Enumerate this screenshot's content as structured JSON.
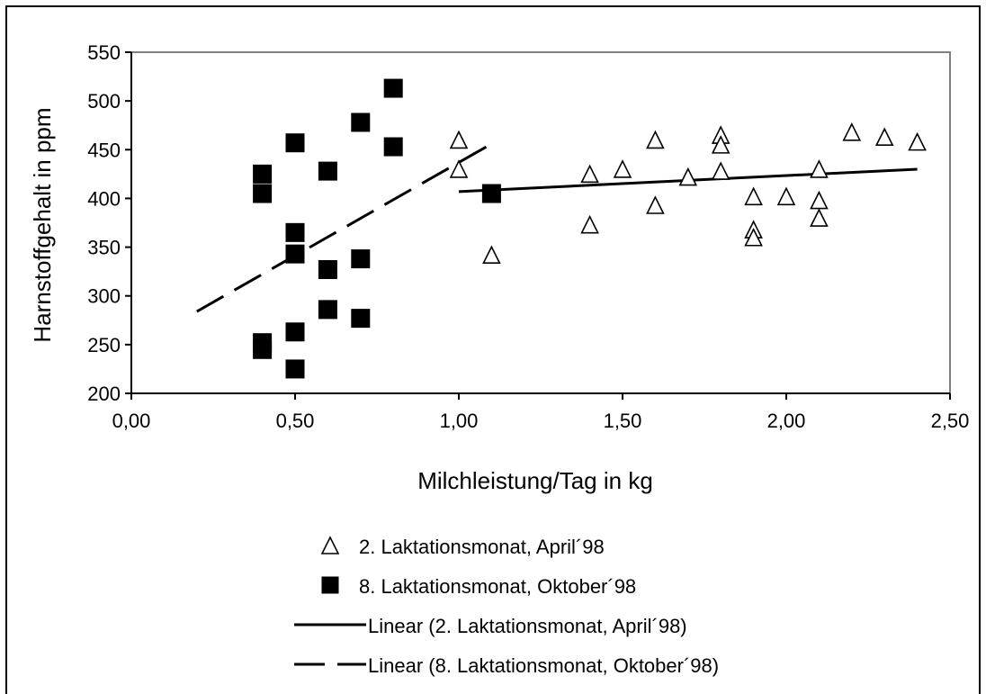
{
  "chart_data": {
    "type": "scatter",
    "title": "",
    "xlabel": "Milchleistung/Tag in kg",
    "ylabel": "Harnstoffgehalt in ppm",
    "xlim": [
      0,
      2.5
    ],
    "ylim": [
      200,
      550
    ],
    "x_ticks": [
      "0,00",
      "0,50",
      "1,00",
      "1,50",
      "2,00",
      "2,50"
    ],
    "x_tick_values": [
      0,
      0.5,
      1.0,
      1.5,
      2.0,
      2.5
    ],
    "y_ticks": [
      "200",
      "250",
      "300",
      "350",
      "400",
      "450",
      "500",
      "550"
    ],
    "y_tick_values": [
      200,
      250,
      300,
      350,
      400,
      450,
      500,
      550
    ],
    "grid": false,
    "legend_position": "bottom",
    "series": [
      {
        "name": "2. Laktationsmonat, April´98",
        "marker": "triangle-open",
        "color": "#000000",
        "points": [
          [
            1.0,
            460
          ],
          [
            1.0,
            430
          ],
          [
            1.1,
            342
          ],
          [
            1.4,
            425
          ],
          [
            1.4,
            373
          ],
          [
            1.5,
            430
          ],
          [
            1.6,
            460
          ],
          [
            1.6,
            393
          ],
          [
            1.7,
            422
          ],
          [
            1.8,
            465
          ],
          [
            1.8,
            455
          ],
          [
            1.8,
            428
          ],
          [
            1.9,
            402
          ],
          [
            1.9,
            368
          ],
          [
            1.9,
            360
          ],
          [
            2.0,
            402
          ],
          [
            2.1,
            430
          ],
          [
            2.1,
            398
          ],
          [
            2.1,
            380
          ],
          [
            2.2,
            468
          ],
          [
            2.3,
            463
          ],
          [
            2.4,
            458
          ]
        ]
      },
      {
        "name": "8. Laktationsmonat, Oktober´98",
        "marker": "square-filled",
        "color": "#000000",
        "points": [
          [
            0.4,
            425
          ],
          [
            0.4,
            405
          ],
          [
            0.4,
            252
          ],
          [
            0.4,
            245
          ],
          [
            0.5,
            457
          ],
          [
            0.5,
            365
          ],
          [
            0.5,
            343
          ],
          [
            0.5,
            263
          ],
          [
            0.5,
            225
          ],
          [
            0.6,
            428
          ],
          [
            0.6,
            327
          ],
          [
            0.6,
            286
          ],
          [
            0.7,
            478
          ],
          [
            0.7,
            338
          ],
          [
            0.7,
            277
          ],
          [
            0.8,
            513
          ],
          [
            0.8,
            453
          ],
          [
            1.1,
            405
          ]
        ]
      }
    ],
    "trendlines": [
      {
        "name": "Linear (2. Laktationsmonat, April´98)",
        "style": "solid",
        "from": [
          1.0,
          407
        ],
        "to": [
          2.4,
          430
        ]
      },
      {
        "name": "Linear (8. Laktationsmonat, Oktober´98)",
        "style": "dashed",
        "from": [
          0.2,
          284
        ],
        "to": [
          1.1,
          456
        ]
      }
    ]
  }
}
